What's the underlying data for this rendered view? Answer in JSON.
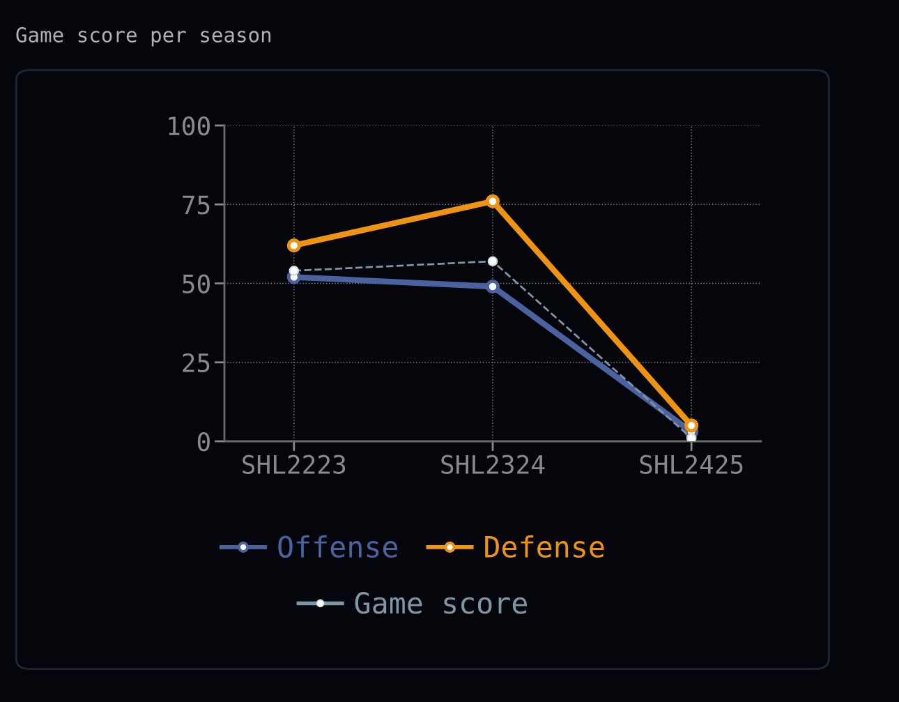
{
  "chart_data": {
    "type": "line",
    "title": "Game score per season",
    "categories": [
      "SHL2223",
      "SHL2324",
      "SHL2425"
    ],
    "series": [
      {
        "name": "Offense",
        "color": "#4a63a0",
        "values": [
          52,
          49,
          3
        ],
        "line_style": "solid"
      },
      {
        "name": "Defense",
        "color": "#f0930f",
        "values": [
          62,
          76,
          5
        ],
        "line_style": "solid"
      },
      {
        "name": "Game score",
        "color": "#7f96a6",
        "values": [
          54,
          57,
          1
        ],
        "line_style": "dashed"
      }
    ],
    "ylim": [
      0,
      100
    ],
    "yticks": [
      0,
      25,
      50,
      75,
      100
    ],
    "grid": true,
    "legend": "bottom",
    "marker": "circle"
  }
}
